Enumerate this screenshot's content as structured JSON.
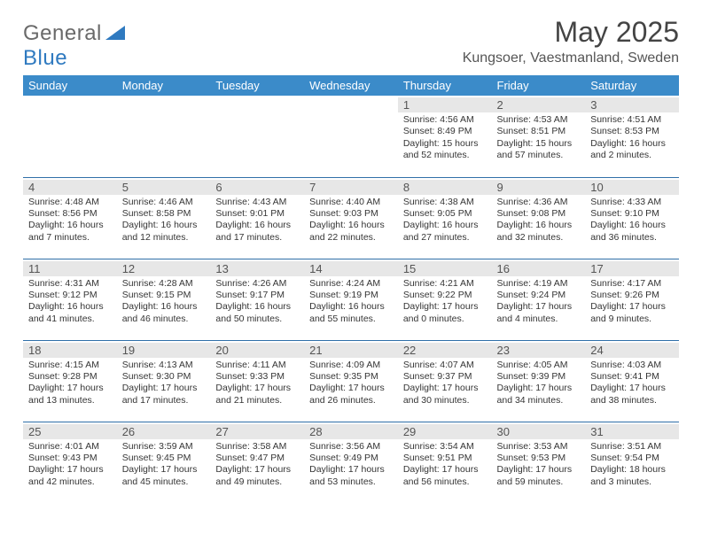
{
  "brand": {
    "part1": "General",
    "part2": "Blue"
  },
  "title": "May 2025",
  "location": "Kungsoer, Vaestmanland, Sweden",
  "colors": {
    "header_bg": "#3b8bc9",
    "header_text": "#ffffff",
    "row_divider": "#2f6fa8",
    "daynum_bg": "#e7e7e7",
    "text": "#353535",
    "brand_gray": "#6a6a6a",
    "brand_blue": "#2f7ac0",
    "page_bg": "#ffffff"
  },
  "typography": {
    "title_size_pt": 24,
    "location_size_pt": 12,
    "header_size_pt": 10,
    "daynum_size_pt": 10,
    "info_size_pt": 8
  },
  "calendar": {
    "type": "table",
    "columns": [
      "Sunday",
      "Monday",
      "Tuesday",
      "Wednesday",
      "Thursday",
      "Friday",
      "Saturday"
    ],
    "weeks": [
      [
        null,
        null,
        null,
        null,
        {
          "n": "1",
          "sr": "4:56 AM",
          "ss": "8:49 PM",
          "dl": "15 hours and 52 minutes."
        },
        {
          "n": "2",
          "sr": "4:53 AM",
          "ss": "8:51 PM",
          "dl": "15 hours and 57 minutes."
        },
        {
          "n": "3",
          "sr": "4:51 AM",
          "ss": "8:53 PM",
          "dl": "16 hours and 2 minutes."
        }
      ],
      [
        {
          "n": "4",
          "sr": "4:48 AM",
          "ss": "8:56 PM",
          "dl": "16 hours and 7 minutes."
        },
        {
          "n": "5",
          "sr": "4:46 AM",
          "ss": "8:58 PM",
          "dl": "16 hours and 12 minutes."
        },
        {
          "n": "6",
          "sr": "4:43 AM",
          "ss": "9:01 PM",
          "dl": "16 hours and 17 minutes."
        },
        {
          "n": "7",
          "sr": "4:40 AM",
          "ss": "9:03 PM",
          "dl": "16 hours and 22 minutes."
        },
        {
          "n": "8",
          "sr": "4:38 AM",
          "ss": "9:05 PM",
          "dl": "16 hours and 27 minutes."
        },
        {
          "n": "9",
          "sr": "4:36 AM",
          "ss": "9:08 PM",
          "dl": "16 hours and 32 minutes."
        },
        {
          "n": "10",
          "sr": "4:33 AM",
          "ss": "9:10 PM",
          "dl": "16 hours and 36 minutes."
        }
      ],
      [
        {
          "n": "11",
          "sr": "4:31 AM",
          "ss": "9:12 PM",
          "dl": "16 hours and 41 minutes."
        },
        {
          "n": "12",
          "sr": "4:28 AM",
          "ss": "9:15 PM",
          "dl": "16 hours and 46 minutes."
        },
        {
          "n": "13",
          "sr": "4:26 AM",
          "ss": "9:17 PM",
          "dl": "16 hours and 50 minutes."
        },
        {
          "n": "14",
          "sr": "4:24 AM",
          "ss": "9:19 PM",
          "dl": "16 hours and 55 minutes."
        },
        {
          "n": "15",
          "sr": "4:21 AM",
          "ss": "9:22 PM",
          "dl": "17 hours and 0 minutes."
        },
        {
          "n": "16",
          "sr": "4:19 AM",
          "ss": "9:24 PM",
          "dl": "17 hours and 4 minutes."
        },
        {
          "n": "17",
          "sr": "4:17 AM",
          "ss": "9:26 PM",
          "dl": "17 hours and 9 minutes."
        }
      ],
      [
        {
          "n": "18",
          "sr": "4:15 AM",
          "ss": "9:28 PM",
          "dl": "17 hours and 13 minutes."
        },
        {
          "n": "19",
          "sr": "4:13 AM",
          "ss": "9:30 PM",
          "dl": "17 hours and 17 minutes."
        },
        {
          "n": "20",
          "sr": "4:11 AM",
          "ss": "9:33 PM",
          "dl": "17 hours and 21 minutes."
        },
        {
          "n": "21",
          "sr": "4:09 AM",
          "ss": "9:35 PM",
          "dl": "17 hours and 26 minutes."
        },
        {
          "n": "22",
          "sr": "4:07 AM",
          "ss": "9:37 PM",
          "dl": "17 hours and 30 minutes."
        },
        {
          "n": "23",
          "sr": "4:05 AM",
          "ss": "9:39 PM",
          "dl": "17 hours and 34 minutes."
        },
        {
          "n": "24",
          "sr": "4:03 AM",
          "ss": "9:41 PM",
          "dl": "17 hours and 38 minutes."
        }
      ],
      [
        {
          "n": "25",
          "sr": "4:01 AM",
          "ss": "9:43 PM",
          "dl": "17 hours and 42 minutes."
        },
        {
          "n": "26",
          "sr": "3:59 AM",
          "ss": "9:45 PM",
          "dl": "17 hours and 45 minutes."
        },
        {
          "n": "27",
          "sr": "3:58 AM",
          "ss": "9:47 PM",
          "dl": "17 hours and 49 minutes."
        },
        {
          "n": "28",
          "sr": "3:56 AM",
          "ss": "9:49 PM",
          "dl": "17 hours and 53 minutes."
        },
        {
          "n": "29",
          "sr": "3:54 AM",
          "ss": "9:51 PM",
          "dl": "17 hours and 56 minutes."
        },
        {
          "n": "30",
          "sr": "3:53 AM",
          "ss": "9:53 PM",
          "dl": "17 hours and 59 minutes."
        },
        {
          "n": "31",
          "sr": "3:51 AM",
          "ss": "9:54 PM",
          "dl": "18 hours and 3 minutes."
        }
      ]
    ],
    "labels": {
      "sunrise": "Sunrise:",
      "sunset": "Sunset:",
      "daylight": "Daylight:"
    }
  }
}
